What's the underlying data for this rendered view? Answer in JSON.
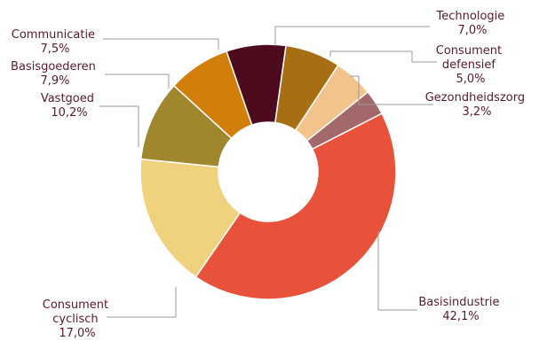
{
  "chart_data": {
    "type": "pie",
    "donut": true,
    "title": "",
    "legend": "none",
    "slices": [
      {
        "label": "Basisindustrie",
        "value": 42.1,
        "value_text": "42,1%",
        "color": "#e8523a"
      },
      {
        "label": "Consument cyclisch",
        "value": 17.0,
        "value_text": "17,0%",
        "color": "#f0d27e"
      },
      {
        "label": "Vastgoed",
        "value": 10.2,
        "value_text": "10,2%",
        "color": "#a0862c"
      },
      {
        "label": "Basisgoederen",
        "value": 7.9,
        "value_text": "7,9%",
        "color": "#d17f0a"
      },
      {
        "label": "Communicatie",
        "value": 7.5,
        "value_text": "7,5%",
        "color": "#4e0b1d"
      },
      {
        "label": "Technologie",
        "value": 7.0,
        "value_text": "7,0%",
        "color": "#a86e14"
      },
      {
        "label": "Consument defensief",
        "value": 5.0,
        "value_text": "5,0%",
        "color": "#f2c48c"
      },
      {
        "label": "Gezondheidszorg",
        "value": 3.2,
        "value_text": "3,2%",
        "color": "#a3686a"
      }
    ]
  }
}
